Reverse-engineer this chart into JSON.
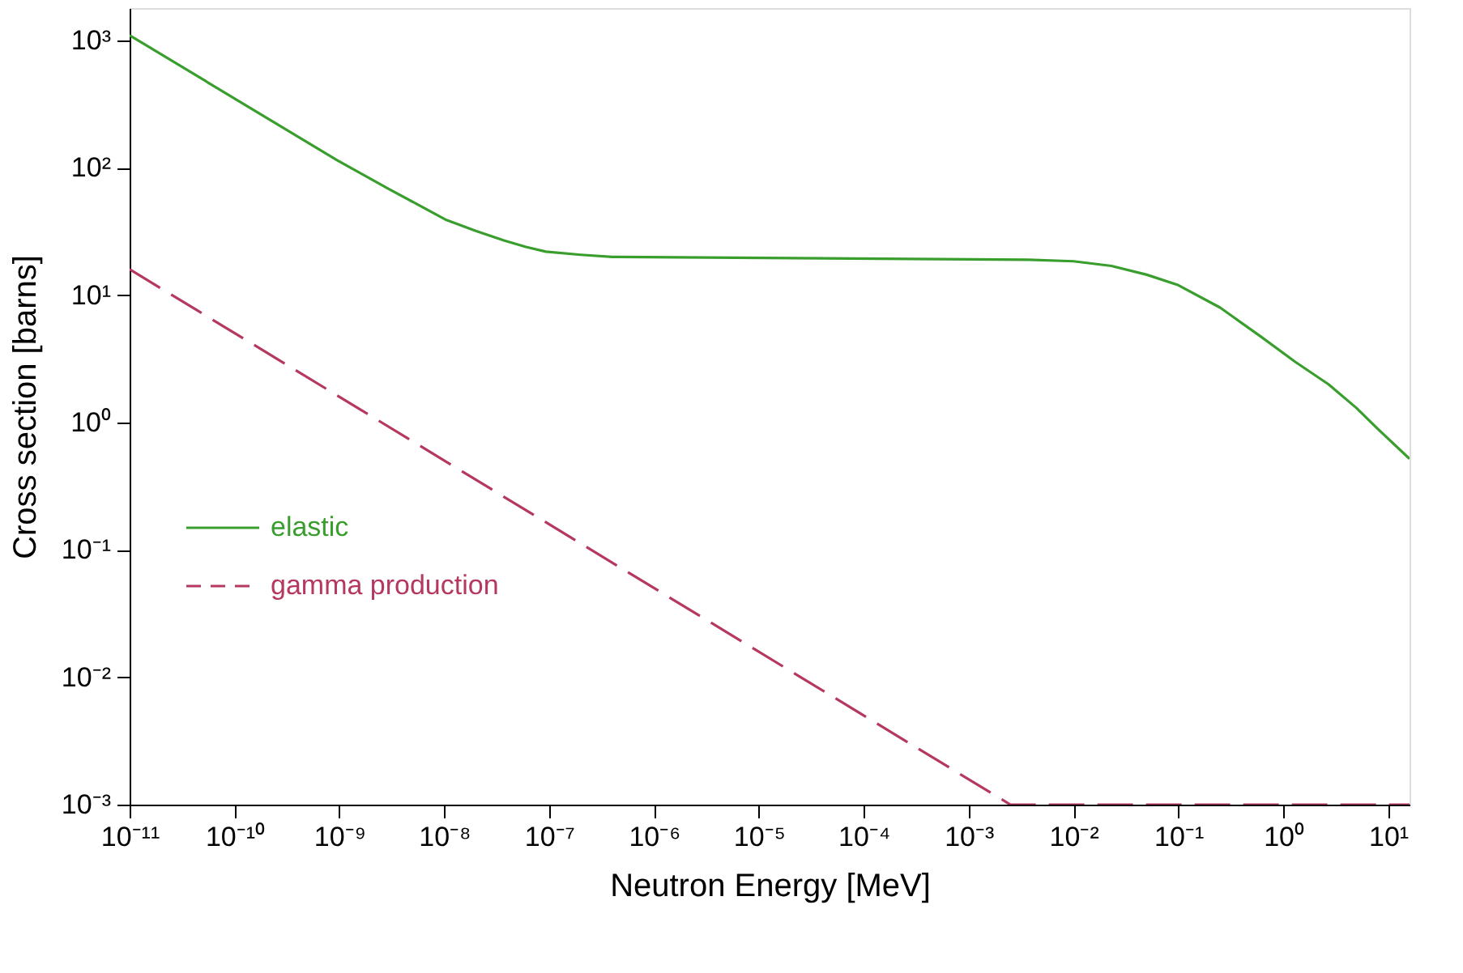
{
  "chart_data": {
    "type": "line",
    "xlabel": "Neutron Energy [MeV]",
    "ylabel": "Cross section [barns]",
    "log": "xy",
    "grid": false,
    "legend": "bottom left",
    "xlim": [
      1e-11,
      16
    ],
    "ylim": [
      0.001,
      1800
    ],
    "xticks": [
      {
        "value": 1e-11,
        "label": "10⁻¹¹"
      },
      {
        "value": 1e-10,
        "label": "10⁻¹⁰"
      },
      {
        "value": 1e-09,
        "label": "10⁻⁹"
      },
      {
        "value": 1e-08,
        "label": "10⁻⁸"
      },
      {
        "value": 1e-07,
        "label": "10⁻⁷"
      },
      {
        "value": 1e-06,
        "label": "10⁻⁶"
      },
      {
        "value": 1e-05,
        "label": "10⁻⁵"
      },
      {
        "value": 0.0001,
        "label": "10⁻⁴"
      },
      {
        "value": 0.001,
        "label": "10⁻³"
      },
      {
        "value": 0.01,
        "label": "10⁻²"
      },
      {
        "value": 0.1,
        "label": "10⁻¹"
      },
      {
        "value": 1,
        "label": "10⁰"
      },
      {
        "value": 10,
        "label": "10¹"
      }
    ],
    "yticks": [
      {
        "value": 0.001,
        "label": "10⁻³"
      },
      {
        "value": 0.01,
        "label": "10⁻²"
      },
      {
        "value": 0.1,
        "label": "10⁻¹"
      },
      {
        "value": 1,
        "label": "10⁰"
      },
      {
        "value": 10,
        "label": "10¹"
      },
      {
        "value": 100,
        "label": "10²"
      },
      {
        "value": 1000,
        "label": "10³"
      }
    ],
    "series": [
      {
        "name": "elastic",
        "color": "#3a9e2e",
        "line_style": "solid",
        "x": [
          1e-11,
          9.5e-10,
          3e-09,
          1.05e-08,
          2e-08,
          3.7e-08,
          6e-08,
          9.3e-08,
          2e-07,
          4e-07,
          0.0037,
          0.01,
          0.023,
          0.05,
          0.1,
          0.25,
          0.62,
          1.3,
          2.7,
          5,
          7.9,
          16
        ],
        "values": [
          1100,
          115,
          68,
          39,
          32,
          27,
          24,
          22,
          20.8,
          20,
          19,
          18.5,
          17,
          14.5,
          12,
          8,
          4.7,
          3,
          2.0,
          1.3,
          0.9,
          0.52
        ]
      },
      {
        "name": "gamma production",
        "color": "#b5385f",
        "line_style": "dashed",
        "x": [
          1e-11,
          0.0025,
          16
        ],
        "values": [
          16,
          0.001,
          0.001
        ]
      }
    ]
  }
}
